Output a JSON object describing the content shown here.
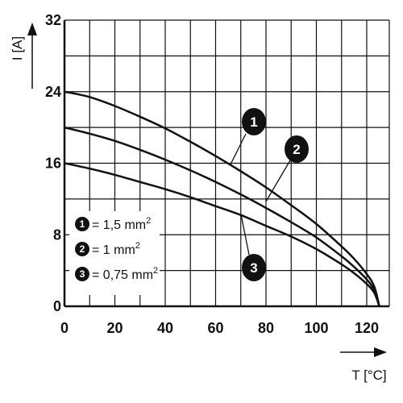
{
  "chart_data": {
    "type": "line",
    "title": "",
    "xlabel": "T [°C]",
    "ylabel": "I [A]",
    "xlim": [
      0,
      125
    ],
    "ylim": [
      0,
      32
    ],
    "grid": true,
    "x_ticks": [
      "0",
      "20",
      "40",
      "60",
      "80",
      "100",
      "120"
    ],
    "y_ticks": [
      "0",
      "8",
      "16",
      "24",
      "32"
    ],
    "legend_placement": "lower-left",
    "series": [
      {
        "name": "1",
        "x": [
          0,
          10,
          20,
          30,
          40,
          50,
          60,
          70,
          80,
          90,
          100,
          110,
          115,
          120,
          123,
          125
        ],
        "y": [
          24,
          23.4,
          22.4,
          21.2,
          19.9,
          18.4,
          16.8,
          15.1,
          13.3,
          11.3,
          9.2,
          6.7,
          5.3,
          3.6,
          2.2,
          0
        ]
      },
      {
        "name": "2",
        "x": [
          0,
          10,
          20,
          30,
          40,
          50,
          60,
          70,
          80,
          90,
          100,
          110,
          115,
          120,
          123,
          125
        ],
        "y": [
          20,
          19.3,
          18.5,
          17.5,
          16.4,
          15.2,
          13.9,
          12.5,
          11.0,
          9.4,
          7.7,
          5.6,
          4.4,
          3.0,
          1.8,
          0
        ]
      },
      {
        "name": "3",
        "x": [
          0,
          10,
          20,
          30,
          40,
          50,
          60,
          70,
          80,
          90,
          100,
          110,
          115,
          120,
          123,
          125
        ],
        "y": [
          16,
          15.4,
          14.7,
          13.9,
          13.1,
          12.2,
          11.2,
          10.2,
          9.0,
          7.8,
          6.4,
          4.7,
          3.7,
          2.5,
          1.5,
          0
        ]
      }
    ],
    "legend": {
      "entries": [
        {
          "marker": "1",
          "text": "= 1,5 mm",
          "superscript": "2"
        },
        {
          "marker": "2",
          "text": "= 1 mm",
          "superscript": "2"
        },
        {
          "marker": "3",
          "text": "= 0,75 mm",
          "superscript": "2"
        }
      ]
    },
    "callouts": [
      {
        "label": "1",
        "series": "1"
      },
      {
        "label": "2",
        "series": "2"
      },
      {
        "label": "3",
        "series": "3"
      }
    ],
    "colors": {
      "line": "#111111",
      "grid": "#111111",
      "marker": "#111111",
      "background": "#ffffff"
    }
  }
}
